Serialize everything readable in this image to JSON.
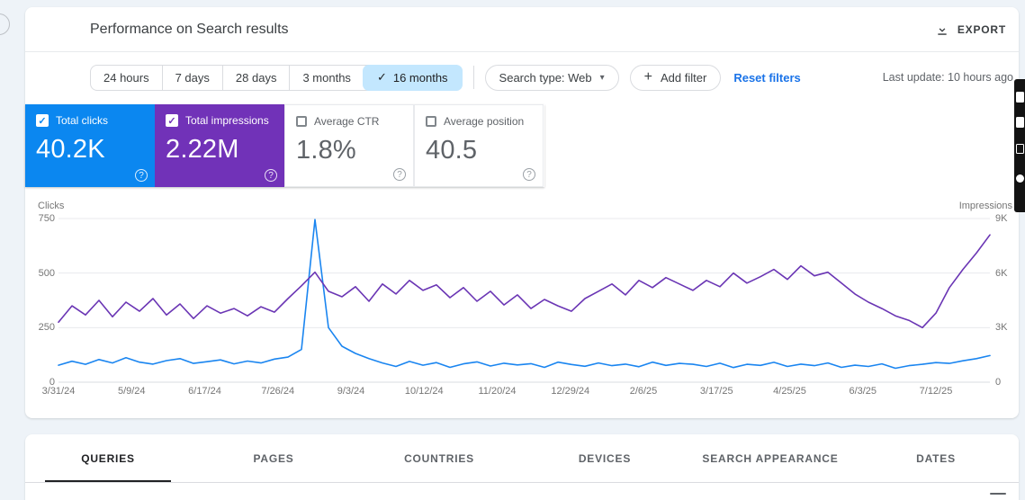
{
  "window": {
    "background": "#eef3f8"
  },
  "header": {
    "title": "Performance on Search results",
    "export_label": "EXPORT"
  },
  "filters": {
    "date_ranges": [
      "24 hours",
      "7 days",
      "28 days",
      "3 months",
      "16 months"
    ],
    "active_range": "16 months",
    "check_glyph": "✓",
    "search_type_label": "Search type: Web",
    "dropdown_glyph": "▾",
    "plus_glyph": "+",
    "add_filter_label": "Add filter",
    "reset_label": "Reset filters",
    "last_update": "Last update: 10 hours ago"
  },
  "metrics": {
    "help_glyph": "?",
    "cards": [
      {
        "label": "Total clicks",
        "value": "40.2K",
        "checked": true,
        "bg": "#0b87f0",
        "text": "#ffffff"
      },
      {
        "label": "Total impressions",
        "value": "2.22M",
        "checked": true,
        "bg": "#7132b8",
        "text": "#ffffff"
      },
      {
        "label": "Average CTR",
        "value": "1.8%",
        "checked": false,
        "bg": "#ffffff",
        "text": "#5f6368"
      },
      {
        "label": "Average position",
        "value": "40.5",
        "checked": false,
        "bg": "#ffffff",
        "text": "#5f6368"
      }
    ]
  },
  "chart_data": {
    "type": "line",
    "grid": true,
    "legend": false,
    "left_axis": {
      "label": "Clicks",
      "ticks": [
        "0",
        "250",
        "500",
        "750"
      ],
      "max": 750
    },
    "right_axis": {
      "label": "Impressions",
      "ticks": [
        "0",
        "3K",
        "6K",
        "9K"
      ],
      "max": 9000
    },
    "x_tick_labels": [
      "3/31/24",
      "5/9/24",
      "6/17/24",
      "7/26/24",
      "9/3/24",
      "10/12/24",
      "11/20/24",
      "12/29/24",
      "2/6/25",
      "3/17/25",
      "4/25/25",
      "6/3/25",
      "7/12/25"
    ],
    "x_range": [
      "3/31/24",
      "8/10/25"
    ],
    "sampling_note": "approximate weekly samples estimated from the daily chart",
    "series": [
      {
        "name": "Total clicks",
        "axis": "left",
        "color": "#1a85f0",
        "values": [
          78,
          96,
          82,
          104,
          88,
          112,
          92,
          83,
          99,
          108,
          86,
          94,
          102,
          84,
          97,
          88,
          106,
          115,
          150,
          745,
          250,
          165,
          132,
          108,
          88,
          72,
          95,
          78,
          90,
          68,
          84,
          93,
          74,
          87,
          79,
          85,
          68,
          92,
          81,
          73,
          88,
          76,
          83,
          71,
          92,
          77,
          86,
          82,
          72,
          87,
          67,
          82,
          77,
          91,
          72,
          83,
          76,
          88,
          68,
          78,
          72,
          84,
          64,
          76,
          82,
          90,
          86,
          98,
          108,
          122
        ]
      },
      {
        "name": "Total impressions",
        "axis": "right",
        "color": "#6a35b4",
        "values": [
          3300,
          4200,
          3700,
          4500,
          3600,
          4400,
          3900,
          4600,
          3700,
          4300,
          3500,
          4200,
          3800,
          4050,
          3650,
          4150,
          3850,
          4600,
          5300,
          6050,
          5000,
          4700,
          5250,
          4450,
          5400,
          4850,
          5600,
          5050,
          5350,
          4650,
          5200,
          4450,
          5000,
          4250,
          4800,
          4050,
          4550,
          4200,
          3900,
          4600,
          5000,
          5400,
          4800,
          5600,
          5200,
          5750,
          5400,
          5050,
          5600,
          5250,
          6000,
          5450,
          5800,
          6200,
          5650,
          6400,
          5850,
          6050,
          5450,
          4850,
          4400,
          4050,
          3650,
          3400,
          3000,
          3800,
          5200,
          6200,
          7100,
          8100
        ]
      }
    ]
  },
  "tabs": {
    "items": [
      "QUERIES",
      "PAGES",
      "COUNTRIES",
      "DEVICES",
      "SEARCH APPEARANCE",
      "DATES"
    ],
    "active": "QUERIES"
  }
}
